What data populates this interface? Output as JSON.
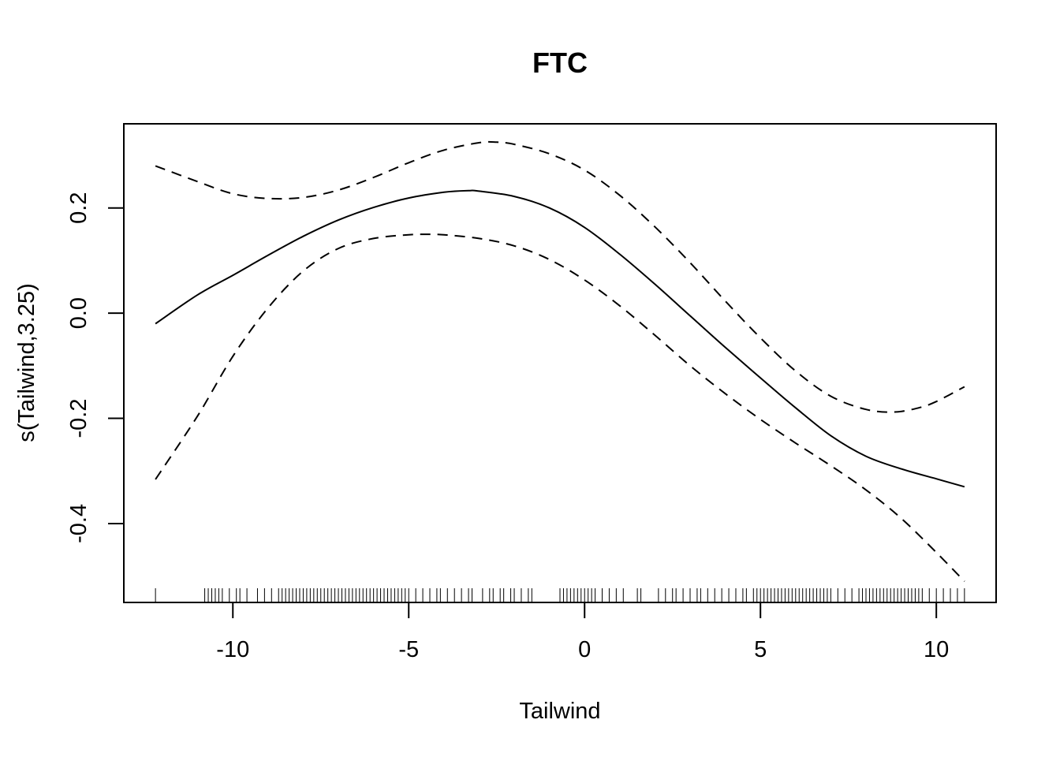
{
  "chart_data": {
    "type": "line",
    "title": "FTC",
    "xlabel": "Tailwind",
    "ylabel": "s(Tailwind,3.25)",
    "xlim": [
      -13.1,
      11.7
    ],
    "ylim": [
      -0.55,
      0.36
    ],
    "x_ticks": [
      -10,
      -5,
      0,
      5,
      10
    ],
    "x_tick_labels": [
      "-10",
      "-5",
      "0",
      "5",
      "10"
    ],
    "y_ticks": [
      -0.4,
      -0.2,
      0.0,
      0.2
    ],
    "y_tick_labels": [
      "-0.4",
      "-0.2",
      "0.0",
      "0.2"
    ],
    "grid": false,
    "legend": "none",
    "colors": {
      "line": "#000000",
      "background": "#ffffff"
    },
    "series": [
      {
        "role": "fit",
        "line_style": "solid",
        "x": [
          -12.2,
          -11,
          -10,
          -9,
          -8,
          -7,
          -6,
          -5,
          -4,
          -3.3,
          -3,
          -2,
          -1,
          0,
          1,
          2,
          3,
          4,
          5,
          6,
          7,
          8,
          9,
          10,
          10.8
        ],
        "y": [
          -0.02,
          0.035,
          0.072,
          0.11,
          0.146,
          0.177,
          0.201,
          0.219,
          0.23,
          0.233,
          0.232,
          0.222,
          0.2,
          0.163,
          0.112,
          0.055,
          -0.005,
          -0.065,
          -0.123,
          -0.18,
          -0.233,
          -0.272,
          -0.296,
          -0.315,
          -0.33
        ]
      },
      {
        "role": "upper-ci",
        "line_style": "dashed",
        "x": [
          -12.2,
          -11,
          -10,
          -9,
          -8,
          -7,
          -6,
          -5,
          -4,
          -3,
          -2.5,
          -2,
          -1,
          0,
          1,
          2,
          3,
          4,
          5,
          6,
          7,
          8,
          8.8,
          9.5,
          10,
          10.8
        ],
        "y": [
          0.28,
          0.25,
          0.227,
          0.218,
          0.22,
          0.234,
          0.258,
          0.286,
          0.31,
          0.324,
          0.325,
          0.321,
          0.303,
          0.272,
          0.224,
          0.164,
          0.096,
          0.023,
          -0.047,
          -0.11,
          -0.158,
          -0.183,
          -0.188,
          -0.18,
          -0.168,
          -0.14
        ]
      },
      {
        "role": "lower-ci",
        "line_style": "dashed",
        "x": [
          -12.2,
          -11,
          -10,
          -9,
          -8,
          -7,
          -6,
          -5,
          -4.5,
          -4,
          -3,
          -2,
          -1,
          0,
          1,
          2,
          3,
          4,
          5,
          6,
          7,
          8,
          9,
          10,
          10.8
        ],
        "y": [
          -0.316,
          -0.195,
          -0.082,
          0.01,
          0.08,
          0.123,
          0.142,
          0.149,
          0.15,
          0.149,
          0.142,
          0.128,
          0.102,
          0.063,
          0.014,
          -0.042,
          -0.1,
          -0.153,
          -0.202,
          -0.247,
          -0.29,
          -0.336,
          -0.39,
          -0.455,
          -0.51
        ]
      }
    ],
    "rug": [
      -12.2,
      -10.8,
      -10.7,
      -10.6,
      -10.5,
      -10.4,
      -10.3,
      -10.1,
      -9.9,
      -9.8,
      -9.6,
      -9.3,
      -9.1,
      -8.9,
      -8.7,
      -8.6,
      -8.5,
      -8.4,
      -8.3,
      -8.2,
      -8.1,
      -8.0,
      -7.9,
      -7.8,
      -7.7,
      -7.6,
      -7.5,
      -7.4,
      -7.3,
      -7.2,
      -7.1,
      -7.0,
      -6.9,
      -6.8,
      -6.7,
      -6.6,
      -6.5,
      -6.4,
      -6.3,
      -6.2,
      -6.1,
      -6.0,
      -5.9,
      -5.8,
      -5.7,
      -5.6,
      -5.5,
      -5.4,
      -5.3,
      -5.2,
      -5.1,
      -5.0,
      -4.8,
      -4.6,
      -4.4,
      -4.2,
      -4.1,
      -3.9,
      -3.7,
      -3.5,
      -3.3,
      -3.2,
      -2.9,
      -2.7,
      -2.6,
      -2.4,
      -2.3,
      -2.1,
      -2.0,
      -1.8,
      -1.6,
      -1.5,
      -0.7,
      -0.6,
      -0.5,
      -0.4,
      -0.3,
      -0.2,
      -0.1,
      0.0,
      0.1,
      0.2,
      0.3,
      0.5,
      0.7,
      0.9,
      1.1,
      1.5,
      1.6,
      2.1,
      2.3,
      2.5,
      2.6,
      2.8,
      3.0,
      3.2,
      3.3,
      3.5,
      3.7,
      3.9,
      4.1,
      4.3,
      4.5,
      4.6,
      4.8,
      4.9,
      5.0,
      5.1,
      5.2,
      5.3,
      5.4,
      5.5,
      5.6,
      5.7,
      5.8,
      5.9,
      6.0,
      6.1,
      6.2,
      6.3,
      6.4,
      6.5,
      6.6,
      6.7,
      6.8,
      6.9,
      7.0,
      7.2,
      7.4,
      7.6,
      7.8,
      7.9,
      8.0,
      8.1,
      8.2,
      8.3,
      8.4,
      8.5,
      8.6,
      8.7,
      8.8,
      8.9,
      9.0,
      9.1,
      9.2,
      9.3,
      9.4,
      9.5,
      9.6,
      9.8,
      10.0,
      10.2,
      10.4,
      10.6,
      10.8
    ]
  }
}
